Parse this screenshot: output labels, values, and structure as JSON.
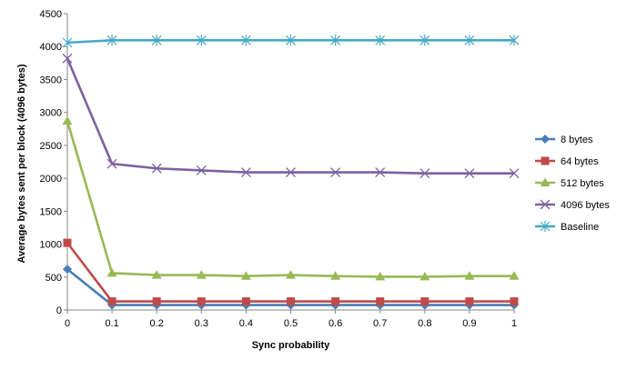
{
  "chart_data": {
    "type": "line",
    "title": "",
    "xlabel": "Sync probability",
    "ylabel": "Average bytes sent per block  (4096 bytes)",
    "x": [
      0,
      0.1,
      0.2,
      0.3,
      0.4,
      0.5,
      0.6,
      0.7,
      0.8,
      0.9,
      1
    ],
    "x_tick_labels": [
      "0",
      "0.1",
      "0.2",
      "0.3",
      "0.4",
      "0.5",
      "0.6",
      "0.7",
      "0.8",
      "0.9",
      "1"
    ],
    "ylim": [
      0,
      4500
    ],
    "y_ticks": [
      0,
      500,
      1000,
      1500,
      2000,
      2500,
      3000,
      3500,
      4000,
      4500
    ],
    "grid": false,
    "legend_position": "right",
    "series": [
      {
        "name": "8 bytes",
        "color": "#4a7ebb",
        "marker": "diamond",
        "values": [
          620,
          75,
          75,
          75,
          75,
          75,
          75,
          75,
          75,
          75,
          75
        ]
      },
      {
        "name": "64 bytes",
        "color": "#be4b48",
        "marker": "square",
        "values": [
          1020,
          130,
          130,
          130,
          130,
          130,
          130,
          130,
          130,
          130,
          130
        ]
      },
      {
        "name": "512 bytes",
        "color": "#98b954",
        "marker": "triangle",
        "values": [
          2870,
          560,
          530,
          530,
          515,
          530,
          515,
          505,
          505,
          515,
          515
        ]
      },
      {
        "name": "4096 bytes",
        "color": "#7d60a0",
        "marker": "x",
        "values": [
          3820,
          2220,
          2150,
          2120,
          2090,
          2090,
          2090,
          2090,
          2075,
          2075,
          2075
        ]
      },
      {
        "name": "Baseline",
        "color": "#46aac5",
        "marker": "star",
        "values": [
          4060,
          4096,
          4096,
          4096,
          4096,
          4096,
          4096,
          4096,
          4096,
          4096,
          4096
        ]
      }
    ]
  }
}
